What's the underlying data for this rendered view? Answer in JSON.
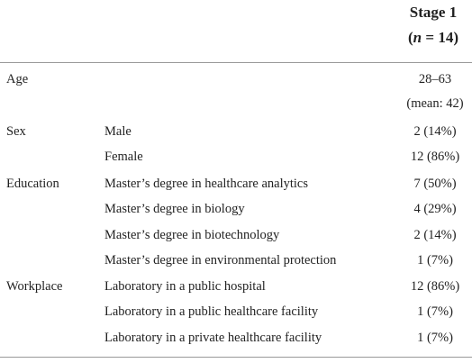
{
  "header": {
    "title": "Stage 1",
    "subtitle": [
      "(",
      "n",
      " = 14)"
    ]
  },
  "table": {
    "rows": [
      {
        "group": "Age",
        "value": "28–63"
      },
      {
        "value": "(mean: 42)"
      },
      {
        "group": "Sex",
        "item": "Male",
        "value": "2 (14%)"
      },
      {
        "item": "Female",
        "value": "12 (86%)"
      },
      {
        "group": "Education",
        "item": "Master’s degree in healthcare analytics",
        "value": "7 (50%)"
      },
      {
        "item": "Master’s degree in biology",
        "value": "4 (29%)"
      },
      {
        "item": "Master’s degree in biotechnology",
        "value": "2 (14%)"
      },
      {
        "item": "Master’s degree in environmental protection",
        "value": "1 (7%)"
      },
      {
        "group": "Workplace",
        "item": "Laboratory in a public hospital",
        "value": "12 (86%)"
      },
      {
        "item": "Laboratory in a public healthcare facility",
        "value": "1 (7%)"
      },
      {
        "item": "Laboratory in a private healthcare facility",
        "value": "1 (7%)"
      }
    ]
  }
}
